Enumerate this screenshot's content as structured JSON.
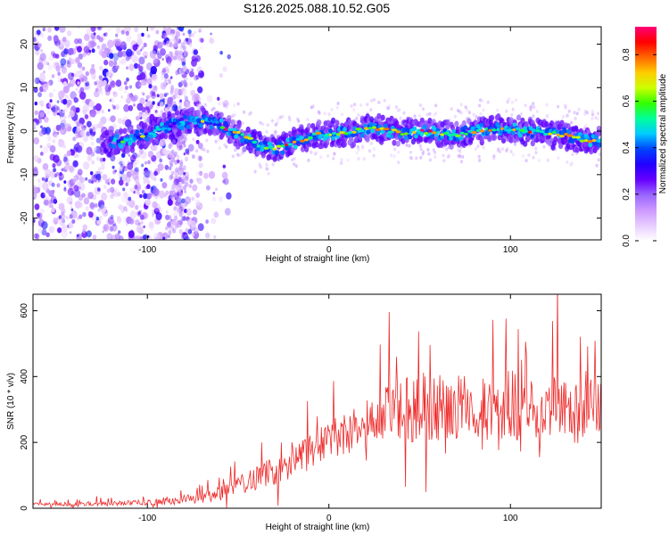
{
  "figure": {
    "title": "S126.2025.088.10.52.G05"
  },
  "chart_data": [
    {
      "type": "heatmap",
      "title": "S126.2025.088.10.52.G05",
      "xlabel": "Height of straight line (km)",
      "ylabel": "Frequency (Hz)",
      "xlim": [
        -163,
        150
      ],
      "ylim": [
        -25,
        24
      ],
      "xticks": [
        -100,
        0,
        100
      ],
      "yticks": [
        -20,
        -10,
        0,
        10,
        20
      ],
      "colorbar": {
        "label": "Normalized spectral amplitude",
        "range": [
          0,
          0.92
        ],
        "ticks": [
          0.0,
          0.2,
          0.4,
          0.6,
          0.8
        ],
        "colormap": [
          "#ffffff",
          "#e8ccff",
          "#cc99ff",
          "#9966ff",
          "#6600ff",
          "#2200ff",
          "#0044ff",
          "#00ccff",
          "#00ff99",
          "#33ff00",
          "#ccff00",
          "#ffcc00",
          "#ff6600",
          "#ff0000",
          "#ff0077"
        ]
      },
      "ridge": {
        "description_points_x_km": [
          -115,
          -100,
          -85,
          -75,
          -65,
          -55,
          -45,
          -38,
          -30,
          -22,
          -15,
          -8,
          0,
          10,
          20,
          30,
          40,
          50,
          60,
          70,
          80,
          90,
          100,
          110,
          120,
          130,
          140,
          150
        ],
        "frequency_hz": [
          -2.5,
          -0.5,
          1.5,
          2.5,
          2.0,
          0.5,
          -1.5,
          -3.5,
          -4.0,
          -3.0,
          -2.0,
          -1.0,
          -0.5,
          -0.5,
          0.5,
          0.5,
          -0.5,
          0.0,
          -0.5,
          -1.0,
          0.0,
          0.5,
          0.5,
          0.0,
          -0.5,
          -1.0,
          -2.0,
          -2.5
        ]
      },
      "noise_region_x_km": [
        -163,
        -80
      ]
    },
    {
      "type": "line",
      "xlabel": "Height of straight line (km)",
      "ylabel": "SNR (10 * v/v)",
      "xlim": [
        -163,
        150
      ],
      "ylim": [
        0,
        650
      ],
      "xticks": [
        -100,
        0,
        100
      ],
      "yticks": [
        0,
        200,
        400,
        600
      ],
      "color": "#ee2a2a",
      "envelope": {
        "x_km": [
          -163,
          -120,
          -90,
          -80,
          -70,
          -60,
          -50,
          -40,
          -30,
          -20,
          -10,
          0,
          10,
          20,
          30,
          40,
          50,
          60,
          70,
          80,
          90,
          100,
          110,
          120,
          130,
          140,
          150
        ],
        "mean_snr": [
          12,
          14,
          20,
          25,
          30,
          45,
          70,
          95,
          115,
          140,
          165,
          205,
          230,
          260,
          275,
          295,
          305,
          310,
          310,
          300,
          310,
          315,
          310,
          305,
          300,
          290,
          300
        ],
        "spread": [
          5,
          7,
          10,
          12,
          15,
          22,
          30,
          38,
          45,
          50,
          55,
          60,
          70,
          80,
          90,
          100,
          110,
          110,
          105,
          100,
          105,
          110,
          105,
          100,
          100,
          95,
          100
        ]
      }
    }
  ]
}
